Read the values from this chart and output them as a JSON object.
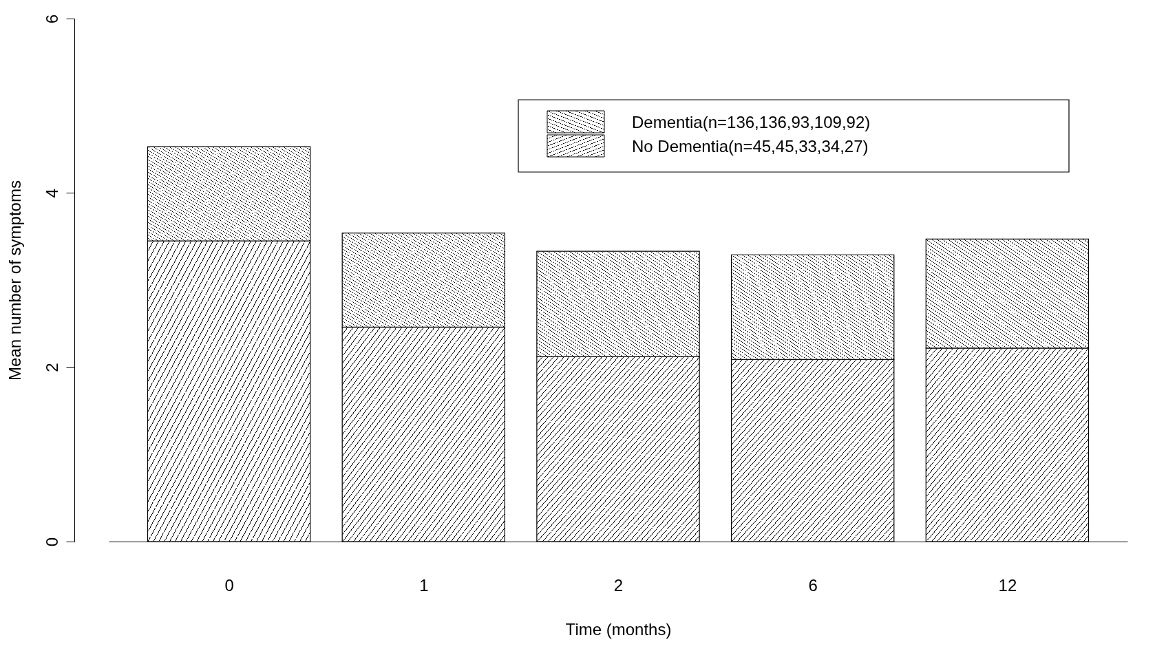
{
  "chart_data": {
    "type": "bar",
    "stacked": true,
    "xlabel": "Time (months)",
    "ylabel": "Mean number of symptoms",
    "categories": [
      "0",
      "1",
      "2",
      "6",
      "12"
    ],
    "series": [
      {
        "name": "No Dementia(n=45,45,33,34,27)",
        "color": "#000000",
        "values": [
          3.45,
          2.46,
          2.12,
          2.09,
          2.22
        ]
      },
      {
        "name": "Dementia(n=136,136,93,109,92)",
        "color": "#000000",
        "values": [
          1.08,
          1.08,
          1.21,
          1.2,
          1.25
        ]
      }
    ],
    "ylim": [
      0,
      6
    ],
    "yticks": [
      0,
      2,
      4,
      6
    ],
    "grid": false,
    "legend": "top right"
  }
}
